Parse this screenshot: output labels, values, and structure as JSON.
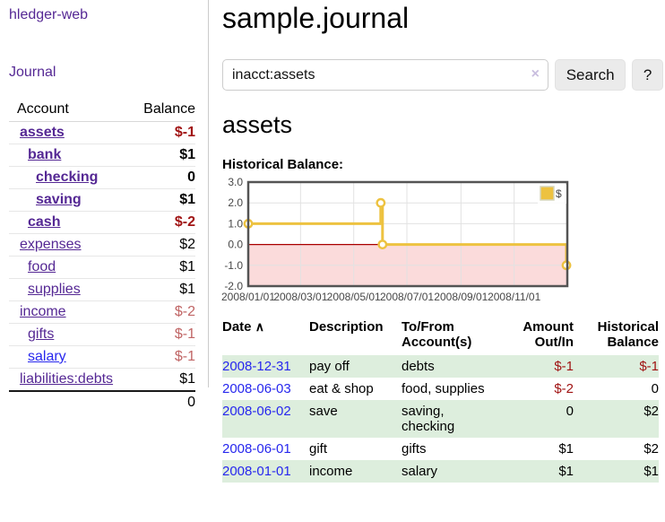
{
  "app": {
    "title": "hledger-web"
  },
  "colors": {
    "link_purple": "#552894",
    "link_blue": "#2727ee",
    "negative_strong": "#a01313",
    "negative_soft": "#c06565",
    "row_green": "#ddeedd",
    "series_gold": "#edc240",
    "zero_line": "#aa0000",
    "negative_region": "#fbdbdb",
    "chart_border": "#545454"
  },
  "sidebar": {
    "nav_journal": "Journal",
    "accounts": {
      "headers": {
        "account": "Account",
        "balance": "Balance"
      },
      "rows": [
        {
          "name": "assets",
          "balance": "$-1"
        },
        {
          "name": "bank",
          "balance": "$1"
        },
        {
          "name": "checking",
          "balance": "0"
        },
        {
          "name": "saving",
          "balance": "$1"
        },
        {
          "name": "cash",
          "balance": "$-2"
        },
        {
          "name": "expenses",
          "balance": "$2"
        },
        {
          "name": "food",
          "balance": "$1"
        },
        {
          "name": "supplies",
          "balance": "$1"
        },
        {
          "name": "income",
          "balance": "$-2"
        },
        {
          "name": "gifts",
          "balance": "$-1"
        },
        {
          "name": "salary",
          "balance": "$-1"
        },
        {
          "name": "liabilities:debts",
          "balance": "$1"
        }
      ],
      "total": "0"
    }
  },
  "main": {
    "title": "sample.journal",
    "search": {
      "value": "inacct:assets",
      "clear_icon": "×",
      "search_label": "Search",
      "help_label": "?"
    },
    "account_heading": "assets",
    "chart_label": "Historical Balance:"
  },
  "chart_data": {
    "type": "line",
    "step": true,
    "title": "Historical Balance",
    "series": [
      {
        "name": "$",
        "color": "#edc240",
        "points": [
          [
            "2008-01-01",
            1
          ],
          [
            "2008-06-01",
            2
          ],
          [
            "2008-06-03",
            0
          ],
          [
            "2008-12-31",
            -1
          ]
        ]
      }
    ],
    "x_range": [
      "2008-01-01",
      "2009-01-01"
    ],
    "x_ticks": [
      "2008/01/01",
      "2008/03/01",
      "2008/05/01",
      "2008/07/01",
      "2008/09/01",
      "2008/11/01"
    ],
    "y_ticks": [
      3.0,
      2.0,
      1.0,
      0.0,
      -1.0,
      -2.0
    ],
    "ylim": [
      -2,
      3
    ],
    "grid": true,
    "legend": {
      "position": "top-right",
      "label": "$"
    },
    "negative_region_color": "#fbdbdb",
    "zero_line_color": "#aa0000"
  },
  "register": {
    "headers": {
      "date": "Date",
      "sort_indicator": "∧",
      "description": "Description",
      "accounts": "To/From Account(s)",
      "amount": "Amount Out/In",
      "balance": "Historical Balance"
    },
    "rows": [
      {
        "date": "2008-12-31",
        "description": "pay off",
        "accounts": "debts",
        "amount": "$-1",
        "balance": "$-1"
      },
      {
        "date": "2008-06-03",
        "description": "eat & shop",
        "accounts": "food, supplies",
        "amount": "$-2",
        "balance": "0"
      },
      {
        "date": "2008-06-02",
        "description": "save",
        "accounts": "saving, checking",
        "amount": "0",
        "balance": "$2"
      },
      {
        "date": "2008-06-01",
        "description": "gift",
        "accounts": "gifts",
        "amount": "$1",
        "balance": "$2"
      },
      {
        "date": "2008-01-01",
        "description": "income",
        "accounts": "salary",
        "amount": "$1",
        "balance": "$1"
      }
    ]
  }
}
